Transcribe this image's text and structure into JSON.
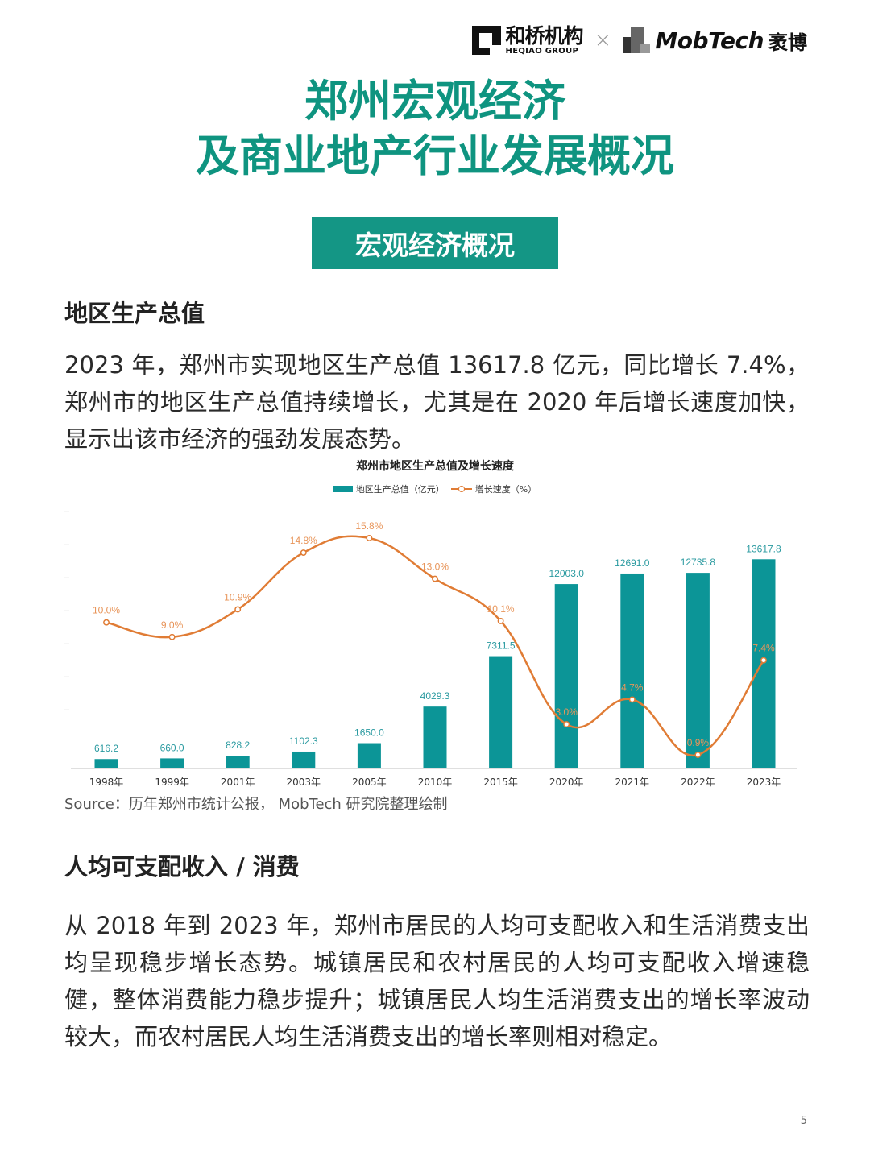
{
  "header": {
    "logo_left_cn": "和桥机构",
    "logo_left_en": "HEQIAO GROUP",
    "separator": "×",
    "logo_right_en": "MobTech",
    "logo_right_cn": "袤博"
  },
  "title": {
    "line1": "郑州宏观经济",
    "line2": "及商业地产行业发展概况"
  },
  "section_badge": "宏观经济概况",
  "section1": {
    "heading": "地区生产总值",
    "paragraph": "2023 年，郑州市实现地区生产总值 13617.8 亿元，同比增长 7.4%，郑州市的地区生产总值持续增长，尤其是在 2020 年后增长速度加快，显示出该市经济的强劲发展态势。"
  },
  "chart_data": {
    "type": "bar",
    "title": "郑州市地区生产总值及增长速度",
    "categories": [
      "1998年",
      "1999年",
      "2001年",
      "2003年",
      "2005年",
      "2010年",
      "2015年",
      "2020年",
      "2021年",
      "2022年",
      "2023年"
    ],
    "series": [
      {
        "name": "地区生产总值（亿元）",
        "type": "bar",
        "color": "#0c9597",
        "values": [
          616.2,
          660.0,
          828.2,
          1102.3,
          1650.0,
          4029.3,
          7311.5,
          12003.0,
          12691.0,
          12735.8,
          13617.8
        ],
        "labels": [
          "616.2",
          "660.0",
          "828.2",
          "1102.3",
          "1650.0",
          "4029.3",
          "7311.5",
          "12003.0",
          "12691.0",
          "12735.8",
          "13617.8"
        ]
      },
      {
        "name": "增长速度（%）",
        "type": "line",
        "color": "#e07c35",
        "values": [
          10.0,
          9.0,
          10.9,
          14.8,
          15.8,
          13.0,
          10.1,
          3.0,
          4.7,
          0.9,
          7.4
        ],
        "labels": [
          "10.0%",
          "9.0%",
          "10.9%",
          "14.8%",
          "15.8%",
          "13.0%",
          "10.1%",
          "3.0%",
          "4.7%",
          "0.9%",
          "7.4%"
        ]
      }
    ],
    "legend": [
      "地区生产总值（亿元）",
      "增长速度（%）"
    ],
    "legend_position": "top",
    "xlabel": "",
    "ylabel": "",
    "grid": false
  },
  "chart_source": "Source：历年郑州市统计公报， MobTech 研究院整理绘制",
  "section2": {
    "heading": "人均可支配收入 / 消费",
    "paragraph": "从 2018 年到 2023 年，郑州市居民的人均可支配收入和生活消费支出均呈现稳步增长态势。城镇居民和农村居民的人均可支配收入增速稳健，整体消费能力稳步提升；城镇居民人均生活消费支出的增长率波动较大，而农村居民人均生活消费支出的增长率则相对稳定。"
  },
  "page_number": "5"
}
